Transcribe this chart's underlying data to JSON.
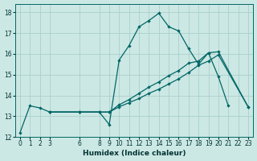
{
  "xlabel": "Humidex (Indice chaleur)",
  "xlim": [
    -0.5,
    23.5
  ],
  "ylim": [
    12,
    18.4
  ],
  "yticks": [
    12,
    13,
    14,
    15,
    16,
    17,
    18
  ],
  "xticks": [
    0,
    1,
    2,
    3,
    6,
    8,
    9,
    10,
    11,
    12,
    13,
    14,
    15,
    16,
    17,
    18,
    19,
    20,
    21,
    22,
    23
  ],
  "bg_color": "#cce8e4",
  "grid_color": "#aacfcc",
  "line_color": "#006666",
  "line1_x": [
    0,
    1,
    2,
    3,
    6,
    8,
    9,
    10,
    11,
    12,
    13,
    14,
    15,
    16,
    17,
    18,
    19,
    20,
    21
  ],
  "line1_y": [
    12.2,
    13.5,
    13.4,
    13.2,
    13.2,
    13.2,
    12.6,
    15.7,
    16.4,
    17.3,
    17.6,
    17.95,
    17.3,
    17.1,
    16.25,
    15.5,
    16.05,
    14.9,
    13.5
  ],
  "line2_x": [
    3,
    6,
    8,
    9,
    10,
    11,
    12,
    13,
    14,
    15,
    16,
    17,
    18,
    19,
    20,
    23
  ],
  "line2_y": [
    13.2,
    13.2,
    13.2,
    13.2,
    13.45,
    13.65,
    13.85,
    14.1,
    14.3,
    14.55,
    14.8,
    15.1,
    15.45,
    15.65,
    15.95,
    13.45
  ],
  "line3_x": [
    3,
    6,
    8,
    9,
    10,
    11,
    12,
    13,
    14,
    15,
    16,
    17,
    18,
    19,
    20,
    23
  ],
  "line3_y": [
    13.2,
    13.2,
    13.2,
    13.2,
    13.55,
    13.8,
    14.1,
    14.4,
    14.65,
    14.95,
    15.2,
    15.55,
    15.65,
    16.05,
    16.1,
    13.45
  ]
}
